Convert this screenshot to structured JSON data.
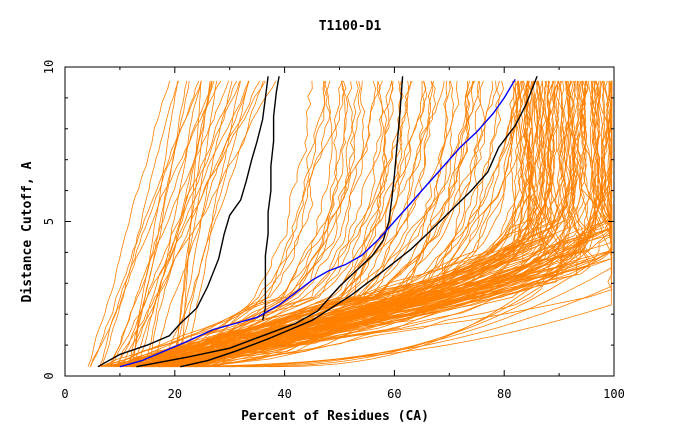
{
  "chart_data": {
    "type": "line",
    "title": "T1100-D1",
    "xlabel": "Percent of Residues (CA)",
    "ylabel": "Distance Cutoff, A",
    "xlim": [
      0,
      100
    ],
    "ylim": [
      0,
      10
    ],
    "x_ticks": [
      "0",
      "20",
      "40",
      "60",
      "80",
      "100"
    ],
    "y_ticks": [
      "0",
      "5",
      "10"
    ],
    "x_tick_values": [
      0,
      20,
      40,
      60,
      80,
      100
    ],
    "y_tick_values": [
      0,
      5,
      10
    ],
    "background_series_color": "#ff8000",
    "background_series_count": 180,
    "highlight_series": [
      {
        "color": "#000000",
        "points": [
          [
            6,
            0.3
          ],
          [
            10,
            0.7
          ],
          [
            15,
            1.0
          ],
          [
            19,
            1.3
          ],
          [
            21,
            1.7
          ],
          [
            24,
            2.2
          ],
          [
            26,
            2.9
          ],
          [
            28,
            3.8
          ],
          [
            29,
            4.6
          ],
          [
            30,
            5.2
          ],
          [
            32,
            5.7
          ],
          [
            33,
            6.3
          ],
          [
            34,
            7.0
          ],
          [
            35,
            7.6
          ],
          [
            36,
            8.3
          ],
          [
            36.5,
            9.0
          ],
          [
            37,
            9.7
          ]
        ]
      },
      {
        "color": "#000000",
        "points": [
          [
            36,
            1.8
          ],
          [
            36.5,
            2.2
          ],
          [
            36.5,
            3.0
          ],
          [
            36.5,
            3.9
          ],
          [
            37,
            4.6
          ],
          [
            37,
            5.3
          ],
          [
            37.5,
            6.0
          ],
          [
            37.5,
            6.8
          ],
          [
            38,
            7.6
          ],
          [
            38,
            8.4
          ],
          [
            38.5,
            9.2
          ],
          [
            39,
            9.7
          ]
        ]
      },
      {
        "color": "#000000",
        "points": [
          [
            13,
            0.3
          ],
          [
            22,
            0.6
          ],
          [
            30,
            0.9
          ],
          [
            36,
            1.3
          ],
          [
            42,
            1.7
          ],
          [
            46,
            2.1
          ],
          [
            48,
            2.5
          ],
          [
            50,
            2.9
          ],
          [
            53,
            3.4
          ],
          [
            56,
            3.9
          ],
          [
            58,
            4.4
          ],
          [
            59,
            5.0
          ],
          [
            59.5,
            5.7
          ],
          [
            60,
            6.5
          ],
          [
            60.5,
            7.5
          ],
          [
            61,
            8.5
          ],
          [
            61.5,
            9.7
          ]
        ]
      },
      {
        "color": "#000000",
        "points": [
          [
            21,
            0.3
          ],
          [
            26,
            0.5
          ],
          [
            31,
            0.8
          ],
          [
            37,
            1.2
          ],
          [
            45,
            1.8
          ],
          [
            52,
            2.6
          ],
          [
            58,
            3.4
          ],
          [
            63,
            4.1
          ],
          [
            66,
            4.6
          ],
          [
            70,
            5.3
          ],
          [
            74,
            6.0
          ],
          [
            77,
            6.6
          ],
          [
            79,
            7.4
          ],
          [
            82,
            8.1
          ],
          [
            84,
            8.8
          ],
          [
            86,
            9.7
          ]
        ]
      }
    ],
    "blue_series": {
      "color": "#0000ff",
      "points": [
        [
          10,
          0.3
        ],
        [
          14,
          0.5
        ],
        [
          18,
          0.8
        ],
        [
          22,
          1.1
        ],
        [
          27,
          1.5
        ],
        [
          31,
          1.7
        ],
        [
          35,
          1.9
        ],
        [
          39,
          2.3
        ],
        [
          42,
          2.7
        ],
        [
          45,
          3.1
        ],
        [
          48,
          3.4
        ],
        [
          51,
          3.6
        ],
        [
          54,
          3.9
        ],
        [
          57,
          4.4
        ],
        [
          60,
          5.0
        ],
        [
          63,
          5.6
        ],
        [
          66,
          6.2
        ],
        [
          69,
          6.8
        ],
        [
          72,
          7.4
        ],
        [
          75,
          7.9
        ],
        [
          78,
          8.5
        ],
        [
          80,
          9.0
        ],
        [
          82,
          9.6
        ]
      ]
    }
  }
}
